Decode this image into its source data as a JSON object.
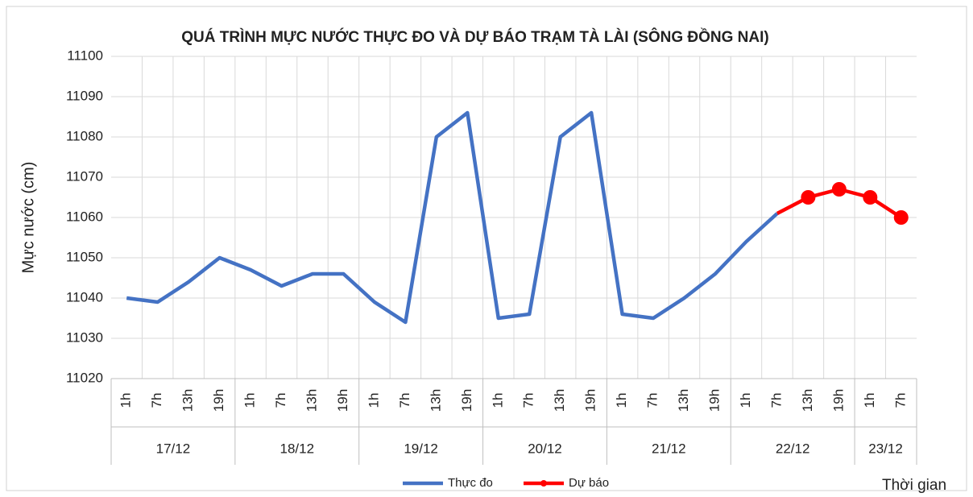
{
  "chart_data": {
    "type": "line",
    "title": "QUÁ TRÌNH MỰC NƯỚC THỰC ĐO VÀ DỰ BÁO TRẠM TÀ LÀI (SÔNG ĐỒNG NAI)",
    "y_label": "Mực nước (cm)",
    "x_label": "Thời gian",
    "groups": [
      {
        "label": "17/12",
        "categories": [
          "1h",
          "7h",
          "13h",
          "19h"
        ]
      },
      {
        "label": "18/12",
        "categories": [
          "1h",
          "7h",
          "13h",
          "19h"
        ]
      },
      {
        "label": "19/12",
        "categories": [
          "1h",
          "7h",
          "13h",
          "19h"
        ]
      },
      {
        "label": "20/12",
        "categories": [
          "1h",
          "7h",
          "13h",
          "19h"
        ]
      },
      {
        "label": "21/12",
        "categories": [
          "1h",
          "7h",
          "13h",
          "19h"
        ]
      },
      {
        "label": "22/12",
        "categories": [
          "1h",
          "7h",
          "13h",
          "19h"
        ]
      },
      {
        "label": "23/12",
        "categories": [
          "1h",
          "7h"
        ]
      }
    ],
    "series": [
      {
        "name": "Thực đo",
        "color": "#4472c4",
        "markers": false,
        "values": [
          11040,
          11039,
          11044,
          11050,
          11047,
          11043,
          11046,
          11046,
          11039,
          11034,
          11080,
          11086,
          11035,
          11036,
          11080,
          11086,
          11036,
          11035,
          11040,
          11046,
          11054,
          11061,
          null,
          null,
          null,
          null
        ]
      },
      {
        "name": "Dự báo",
        "color": "#ff0000",
        "markers": true,
        "values": [
          null,
          null,
          null,
          null,
          null,
          null,
          null,
          null,
          null,
          null,
          null,
          null,
          null,
          null,
          null,
          null,
          null,
          null,
          null,
          null,
          null,
          11061,
          11065,
          11067,
          11065,
          11060
        ]
      }
    ],
    "ylim": [
      11020,
      11100
    ],
    "yticks": [
      11020,
      11030,
      11040,
      11050,
      11060,
      11070,
      11080,
      11090,
      11100
    ],
    "grid": true,
    "legend": "bottom"
  }
}
